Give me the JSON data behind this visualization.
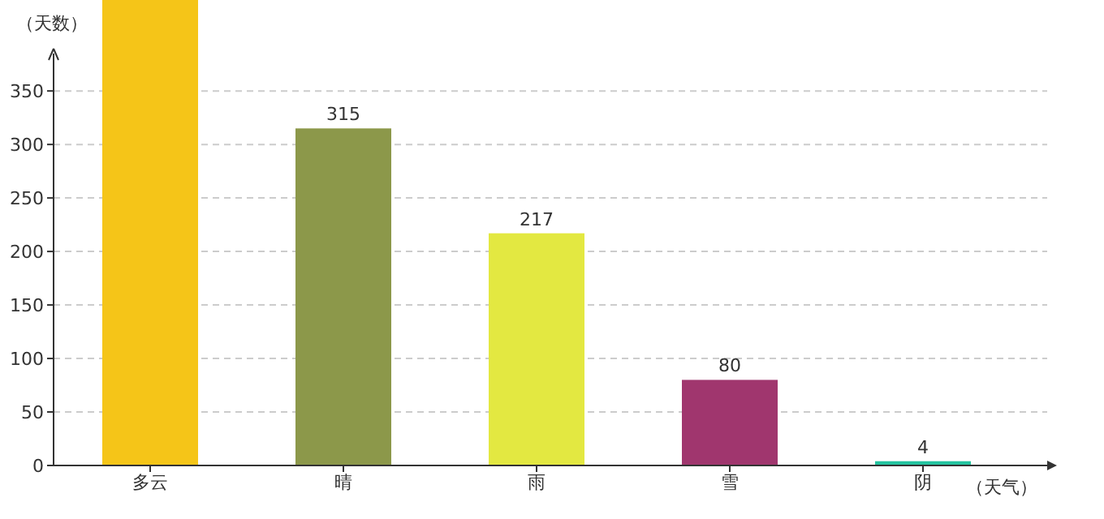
{
  "chart_data": {
    "type": "bar",
    "xlabel": "（天气）",
    "ylabel": "（天数）",
    "categories": [
      "多云",
      "晴",
      "雨",
      "雪",
      "阴"
    ],
    "values": [
      435,
      315,
      217,
      80,
      4
    ],
    "value_labels": [
      null,
      "315",
      "217",
      "80",
      "4"
    ],
    "colors": [
      "#f5c518",
      "#8c984a",
      "#e3e841",
      "#a0366e",
      "#24c4a0"
    ],
    "ylim": [
      0,
      435
    ],
    "yticks": [
      0,
      50,
      100,
      150,
      200,
      250,
      300,
      350
    ],
    "grid": "y"
  }
}
